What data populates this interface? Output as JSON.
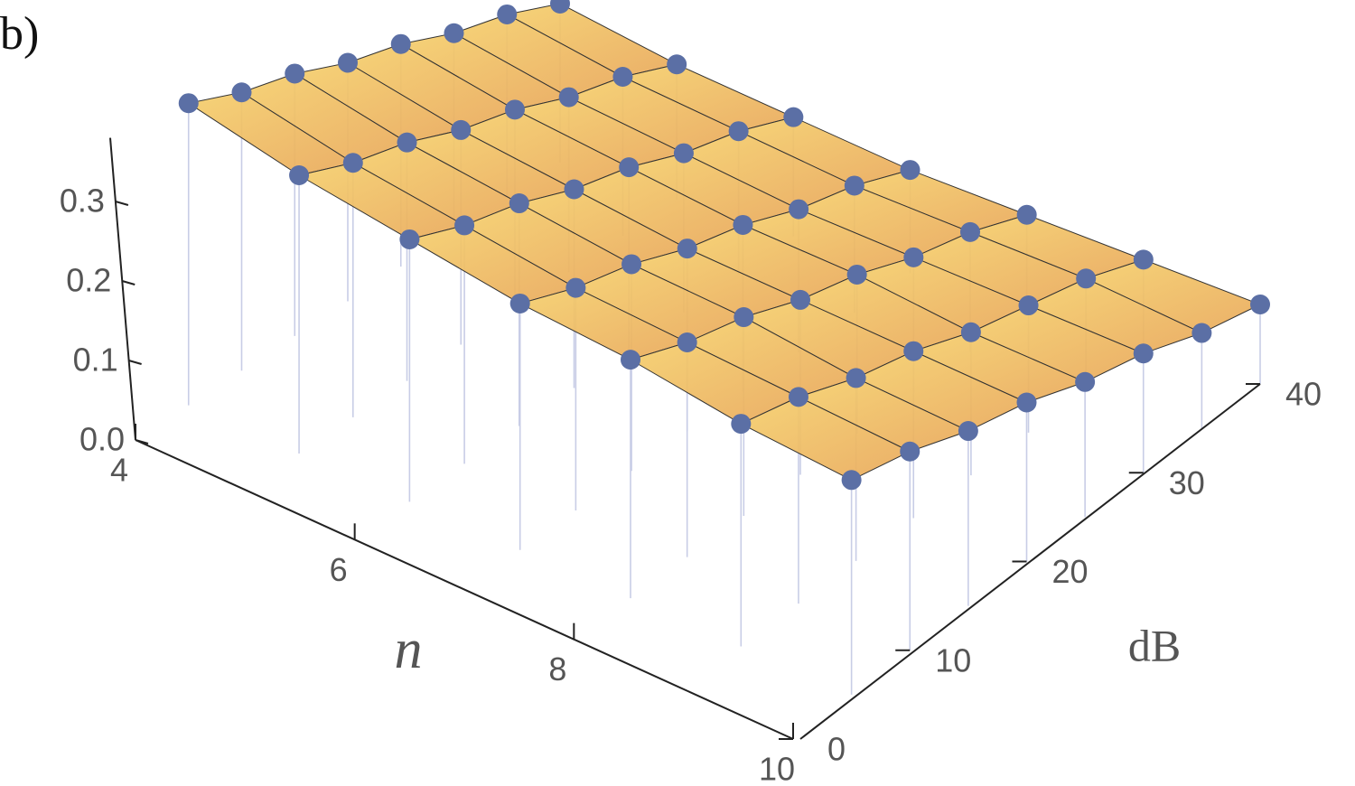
{
  "chart_data": {
    "type": "scatter3d",
    "panel_label": "b)",
    "xlabel": "n",
    "ylabel": "dB",
    "x": [
      4,
      5,
      6,
      7,
      8,
      9,
      10
    ],
    "y": [
      5,
      10,
      15,
      20,
      25,
      30,
      35,
      40
    ],
    "values": [
      [
        0.38,
        0.35,
        0.33,
        0.3,
        0.28,
        0.25,
        0.23,
        0.2
      ],
      [
        0.35,
        0.32,
        0.3,
        0.27,
        0.25,
        0.22,
        0.2,
        0.17
      ],
      [
        0.33,
        0.3,
        0.28,
        0.25,
        0.23,
        0.2,
        0.18,
        0.15
      ],
      [
        0.31,
        0.28,
        0.26,
        0.23,
        0.21,
        0.18,
        0.16,
        0.13
      ],
      [
        0.3,
        0.27,
        0.25,
        0.22,
        0.2,
        0.17,
        0.15,
        0.12
      ],
      [
        0.28,
        0.26,
        0.23,
        0.21,
        0.18,
        0.16,
        0.14,
        0.11
      ],
      [
        0.27,
        0.25,
        0.22,
        0.2,
        0.17,
        0.15,
        0.12,
        0.1
      ]
    ],
    "point_color": "#5b6fa5",
    "stem_color": "#c8cde6",
    "surface_colors": [
      "#f5cf6c",
      "#e9a95b"
    ],
    "xlim": [
      4,
      10
    ],
    "ylim": [
      0,
      40
    ],
    "zlim": [
      0,
      0.38
    ],
    "xticks": [
      4,
      6,
      8,
      10
    ],
    "yticks": [
      0,
      10,
      20,
      30,
      40
    ],
    "zticks": [
      {
        "value": 0,
        "label": "0.0"
      },
      0.1,
      0.2,
      0.3
    ]
  }
}
